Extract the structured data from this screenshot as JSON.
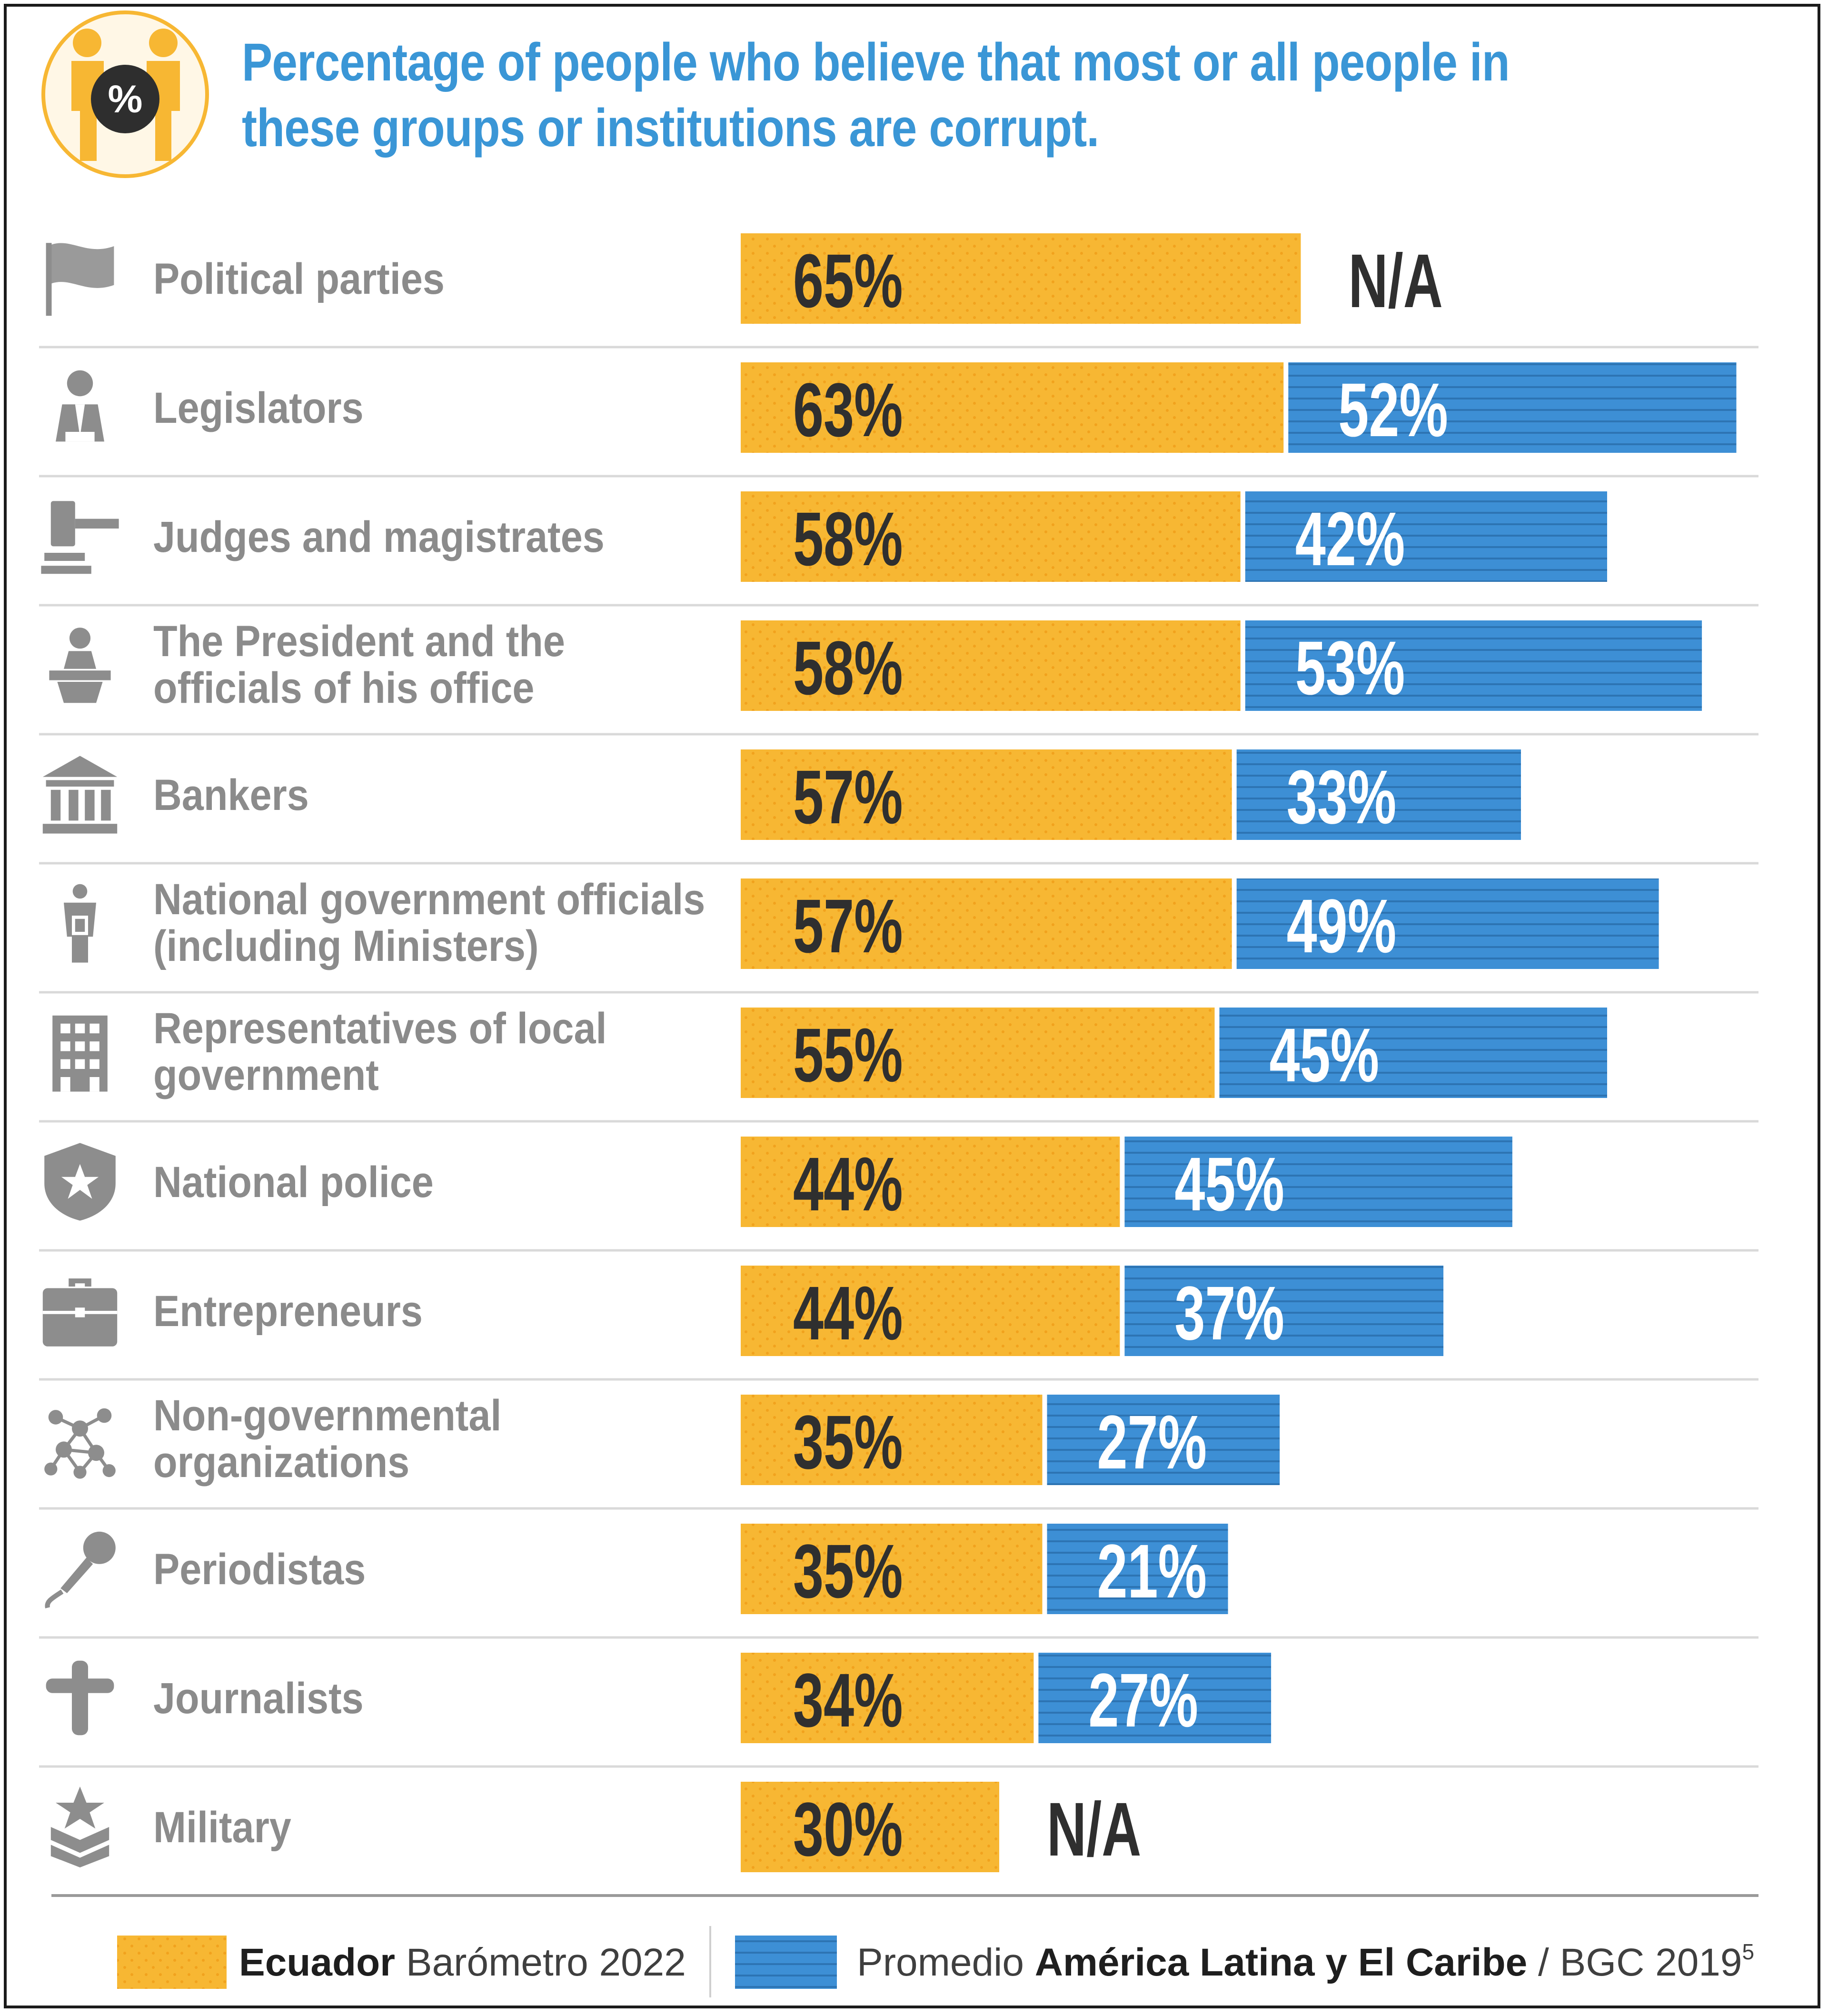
{
  "title": "Percentage of people who believe that most or all people in these groups or institutions are corrupt.",
  "header_icon": "people-percent-icon",
  "chart_data": {
    "type": "bar",
    "orientation": "horizontal",
    "title": "Percentage of people who believe that most or all people in these groups or institutions are corrupt.",
    "xlim": [
      0,
      100
    ],
    "unit": "%",
    "na_label": "N/A",
    "categories": [
      {
        "label": [
          "Political parties"
        ],
        "icon": "flag-icon"
      },
      {
        "label": [
          "Legislators"
        ],
        "icon": "legislator-icon"
      },
      {
        "label": [
          "Judges and magistrates"
        ],
        "icon": "gavel-icon"
      },
      {
        "label": [
          "The President and the",
          "officials of his office"
        ],
        "icon": "podium-icon"
      },
      {
        "label": [
          "Bankers"
        ],
        "icon": "bank-icon"
      },
      {
        "label": [
          "National government officials",
          "(including Ministers)"
        ],
        "icon": "official-icon"
      },
      {
        "label": [
          "Representatives of local",
          "government"
        ],
        "icon": "building-icon"
      },
      {
        "label": [
          "National police"
        ],
        "icon": "police-badge-icon"
      },
      {
        "label": [
          "Entrepreneurs"
        ],
        "icon": "briefcase-icon"
      },
      {
        "label": [
          "Non-governmental",
          "organizations"
        ],
        "icon": "network-icon"
      },
      {
        "label": [
          "Periodistas"
        ],
        "icon": "microphone-icon"
      },
      {
        "label": [
          "Journalists"
        ],
        "icon": "cross-icon"
      },
      {
        "label": [
          "Military"
        ],
        "icon": "military-rank-icon"
      }
    ],
    "series": [
      {
        "name": "Ecuador Barómetro 2022",
        "legend_bold": "Ecuador",
        "legend_rest": " Barómetro 2022",
        "color": "#f7b733",
        "text_color": "#2f2f2f",
        "values": [
          65,
          63,
          58,
          58,
          57,
          57,
          55,
          44,
          44,
          35,
          35,
          34,
          30
        ]
      },
      {
        "name": "Promedio América Latina y El Caribe / BGC 2019",
        "legend_pre": "Promedio ",
        "legend_bold": "América Latina y El Caribe",
        "legend_post": " / BGC 2019",
        "legend_sup": "5",
        "color": "#3d8fd5",
        "text_color": "#ffffff",
        "values": [
          null,
          52,
          42,
          53,
          33,
          49,
          45,
          45,
          37,
          27,
          21,
          27,
          null
        ]
      }
    ]
  }
}
